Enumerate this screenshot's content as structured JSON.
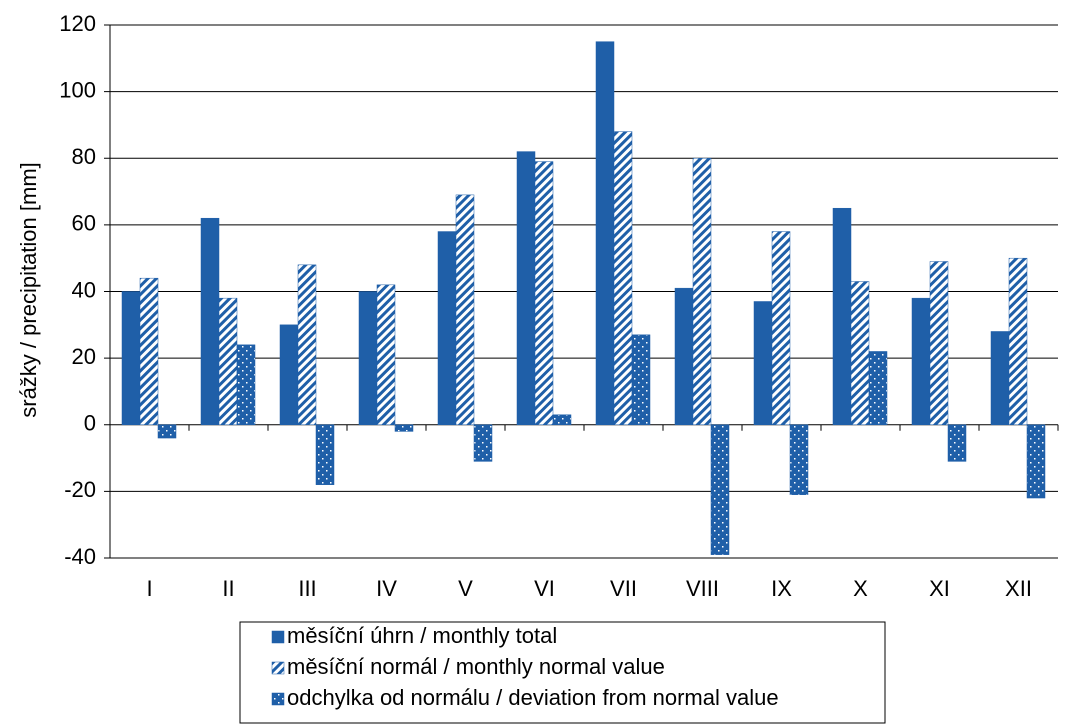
{
  "chart_data": {
    "type": "bar",
    "y_label": "srážky / precipitation [mm]",
    "categories": [
      "I",
      "II",
      "III",
      "IV",
      "V",
      "VI",
      "VII",
      "VIII",
      "IX",
      "X",
      "XI",
      "XII"
    ],
    "series": [
      {
        "name": "měsíční úhrn / monthly total",
        "color": "#1f5fa8",
        "pattern": "solid",
        "values": [
          40,
          62,
          30,
          40,
          58,
          82,
          115,
          41,
          37,
          65,
          38,
          28
        ]
      },
      {
        "name": "měsíční normál / monthly normal value",
        "color": "#1f5fa8",
        "pattern": "hatch",
        "values": [
          44,
          38,
          48,
          42,
          69,
          79,
          88,
          80,
          58,
          43,
          49,
          50
        ]
      },
      {
        "name": "odchylka od normálu / deviation from normal value",
        "color": "#1f5fa8",
        "pattern": "dots",
        "values": [
          -4,
          24,
          -18,
          -2,
          -11,
          3,
          27,
          -39,
          -21,
          22,
          -11,
          -22
        ]
      }
    ],
    "ylim": [
      -40,
      120
    ],
    "yticks": [
      -40,
      -20,
      0,
      20,
      40,
      60,
      80,
      100,
      120
    ],
    "grid": true,
    "legend": "bottom"
  }
}
